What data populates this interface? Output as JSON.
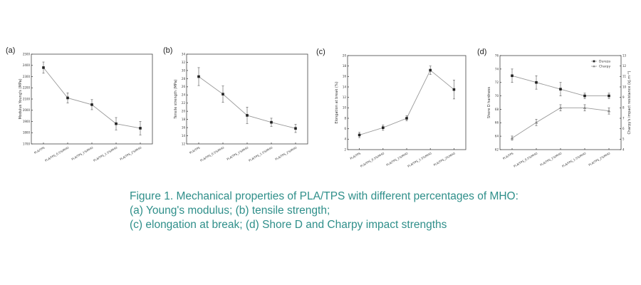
{
  "caption": {
    "line1": "Figure 1. Mechanical properties of PLA/TPS with different percentages of MHO:",
    "line2": "(a) Young's modulus; (b) tensile strength;",
    "line3": "(c) elongation at break; (d) Shore D and Charpy impact strengths"
  },
  "chart_data": [
    {
      "panel": "(a)",
      "type": "line",
      "categories": [
        "PLA/TPS",
        "PLA/TPS_0.5%MHO",
        "PLA/TPS_1%MHO",
        "PLA/TPS_1.5%MHO",
        "PLA/TPS_2%MHO"
      ],
      "ylabel": "Modulus Young's (MPa)",
      "ylim": [
        1700,
        2500
      ],
      "yticks": [
        "1700",
        "1800",
        "1900",
        "2000",
        "2100",
        "2200",
        "2300",
        "2400",
        "2500"
      ],
      "series": [
        {
          "values": [
            2380,
            2110,
            2050,
            1880,
            1840
          ],
          "errors": [
            50,
            45,
            45,
            55,
            60
          ],
          "marker": "square",
          "color": "#222222"
        }
      ]
    },
    {
      "panel": "(b)",
      "type": "line",
      "categories": [
        "PLA/TPS",
        "PLA/TPS_0.5%MHO",
        "PLA/TPS_1%MHO",
        "PLA/TPS_1.5%MHO",
        "PLA/TPS_2%MHO"
      ],
      "ylabel": "Tensile strength (MPa)",
      "ylim": [
        12,
        34
      ],
      "yticks": [
        "12",
        "14",
        "16",
        "18",
        "20",
        "22",
        "24",
        "26",
        "28",
        "30",
        "32",
        "34"
      ],
      "series": [
        {
          "values": [
            28.5,
            24.2,
            19.0,
            17.3,
            15.8
          ],
          "errors": [
            2.2,
            2.0,
            2.0,
            1.0,
            1.0
          ],
          "marker": "square",
          "color": "#222222"
        }
      ]
    },
    {
      "panel": "(c)",
      "type": "line",
      "categories": [
        "PLA/TPS",
        "PLA/TPS_0.5%MHO",
        "PLA/TPS_1%MHO",
        "PLA/TPS_1.5%MHO",
        "PLA/TPS_2%MHO"
      ],
      "ylabel": "Elongation at break (%)",
      "ylim": [
        2,
        20
      ],
      "yticks": [
        "2",
        "4",
        "6",
        "8",
        "10",
        "12",
        "14",
        "16",
        "18",
        "20"
      ],
      "series": [
        {
          "values": [
            4.8,
            6.2,
            8.0,
            17.2,
            13.5
          ],
          "errors": [
            0.5,
            0.5,
            0.5,
            0.8,
            1.8
          ],
          "marker": "square",
          "color": "#222222"
        }
      ]
    },
    {
      "panel": "(d)",
      "type": "line",
      "categories": [
        "PLA/TPS",
        "PLA/TPS_0.5%MHO",
        "PLA/TPS_1%MHO",
        "PLA/TPS_1.5%MHO",
        "PLA/TPS_2%MHO"
      ],
      "ylabel": "Shore D hardness",
      "ylim": [
        62,
        76
      ],
      "yticks": [
        "62",
        "64",
        "66",
        "68",
        "70",
        "72",
        "74",
        "76"
      ],
      "y2label": "Charpy's impact resistance (kJ.m⁻²)",
      "y2lim": [
        4,
        13
      ],
      "y2ticks": [
        "4",
        "5",
        "6",
        "7",
        "8",
        "9",
        "10",
        "11",
        "12",
        "13"
      ],
      "legend_position": "top-right",
      "series": [
        {
          "name": "Dureza",
          "axis": "left",
          "values": [
            73.0,
            72.0,
            71.0,
            70.0,
            70.0
          ],
          "errors": [
            1.0,
            1.0,
            1.0,
            0.4,
            0.4
          ],
          "marker": "square",
          "color": "#222222"
        },
        {
          "name": "Charpy",
          "axis": "right",
          "values": [
            5.1,
            6.6,
            8.0,
            8.0,
            7.7
          ],
          "errors": [
            0.2,
            0.3,
            0.3,
            0.3,
            0.3
          ],
          "marker": "triangle",
          "color": "#888888"
        }
      ]
    }
  ]
}
